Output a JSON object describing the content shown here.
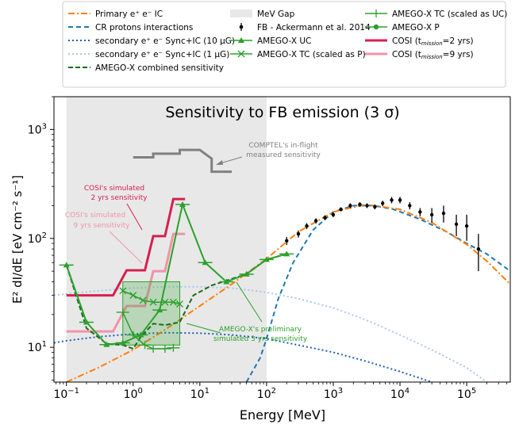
{
  "chart_data": {
    "type": "line",
    "title": "Sensitivity to FB emission (3 σ)",
    "xlabel": "Energy [MeV]",
    "ylabel": "E² dI/dE [eV cm⁻² s⁻¹]",
    "xscale": "log",
    "yscale": "log",
    "xlim": [
      0.065,
      450000
    ],
    "ylim": [
      4.8,
      2000
    ],
    "x_ticks": [
      {
        "value": 0.1,
        "base": "10",
        "exp": "−1"
      },
      {
        "value": 1,
        "base": "10",
        "exp": "0"
      },
      {
        "value": 10,
        "base": "10",
        "exp": "1"
      },
      {
        "value": 100,
        "base": "10",
        "exp": "2"
      },
      {
        "value": 1000,
        "base": "10",
        "exp": "3"
      },
      {
        "value": 10000,
        "base": "10",
        "exp": "4"
      },
      {
        "value": 100000,
        "base": "10",
        "exp": "5"
      }
    ],
    "y_ticks": [
      {
        "value": 10,
        "base": "10",
        "exp": "1"
      },
      {
        "value": 100,
        "base": "10",
        "exp": "2"
      },
      {
        "value": 1000,
        "base": "10",
        "exp": "3"
      }
    ],
    "legend_placement": "top, three columns",
    "legend": [
      {
        "key": "primary",
        "label": "Primary e⁺ e⁻ IC"
      },
      {
        "key": "crp",
        "label": "CR protons interactions"
      },
      {
        "key": "sec10",
        "label": "secondary e⁺ e⁻ Sync+IC (10 μG)"
      },
      {
        "key": "sec1",
        "label": "secondary e⁺ e⁻ Sync+IC (1 μG)"
      },
      {
        "key": "combined",
        "label": "AMEGO-X combined sensitivity"
      },
      {
        "key": "gap",
        "label": "MeV Gap"
      },
      {
        "key": "fb",
        "label": "FB - Ackermann et al. 2014"
      },
      {
        "key": "uc",
        "label": "AMEGO-X UC"
      },
      {
        "key": "tcp",
        "label": "AMEGO-X TC (scaled as P)"
      },
      {
        "key": "tcuc",
        "label": "AMEGO-X TC (scaled as UC)"
      },
      {
        "key": "p",
        "label": "AMEGO-X P"
      },
      {
        "key": "cosi2",
        "label": "COSI (t",
        "sub": "mission",
        "suffix": "=2 yrs)"
      },
      {
        "key": "cosi9",
        "label": "COSI (t",
        "sub": "mission",
        "suffix": "=9 yrs)"
      }
    ],
    "mev_gap": {
      "x": [
        0.1,
        100
      ]
    },
    "colors": {
      "primary": "#ff7f0e",
      "crp": "#1f77b4",
      "sec10": "#1f5fb4",
      "sec1": "#aac8e4",
      "combined": "#1a6e1a",
      "amego": "#2ca02c",
      "cosi2": "#d62050",
      "cosi9": "#ef94a8",
      "comptel": "#808080",
      "fb": "#000000",
      "gap": "#e8e8e8"
    },
    "series": [
      {
        "key": "primary",
        "name": "Primary e⁺ e⁻ IC",
        "x": [
          0.1,
          0.3,
          1,
          3,
          10,
          30,
          100,
          300,
          1000,
          3000,
          10000,
          30000,
          100000,
          200000,
          450000
        ],
        "y": [
          4.8,
          6.5,
          9.5,
          14.5,
          24,
          38,
          65,
          115,
          175,
          205,
          185,
          140,
          88,
          62,
          38
        ]
      },
      {
        "key": "crp",
        "name": "CR protons interactions",
        "x": [
          50,
          80,
          100,
          150,
          250,
          500,
          1000,
          2000,
          4000,
          8000,
          20000,
          50000,
          100000,
          200000,
          450000
        ],
        "y": [
          4.8,
          8,
          12,
          28,
          60,
          120,
          175,
          200,
          200,
          185,
          150,
          115,
          90,
          72,
          50
        ]
      },
      {
        "key": "sec10",
        "name": "secondary e⁺ e⁻ Sync+IC (10 μG)",
        "x": [
          0.065,
          0.1,
          0.3,
          1,
          3,
          10,
          30,
          100,
          300,
          1000,
          3000,
          10000,
          30000
        ],
        "y": [
          11,
          11.5,
          12.5,
          13.3,
          13.6,
          13.5,
          13,
          12,
          10.5,
          9,
          7.5,
          6,
          4.8
        ]
      },
      {
        "key": "sec1",
        "name": "secondary e⁺ e⁻ Sync+IC (1 μG)",
        "x": [
          0.065,
          0.1,
          0.3,
          1,
          3,
          10,
          30,
          100,
          300,
          1000,
          3000,
          10000,
          30000,
          100000,
          200000
        ],
        "y": [
          30,
          31,
          33,
          35,
          36,
          36,
          35,
          32,
          28,
          23,
          18,
          13,
          9.5,
          6.5,
          4.8
        ]
      },
      {
        "key": "combined",
        "name": "AMEGO-X combined sensitivity",
        "x": [
          0.1,
          0.2,
          0.4,
          0.7,
          1.0,
          1.3,
          2.0,
          3.0,
          5.0,
          8.0,
          15,
          25,
          50,
          100,
          200
        ],
        "y": [
          57,
          15,
          10.8,
          10.5,
          9.7,
          12.5,
          16.5,
          16,
          17,
          30,
          37,
          41,
          47,
          64,
          72
        ]
      },
      {
        "key": "uc",
        "name": "AMEGO-X UC",
        "x": [
          0.1,
          0.2,
          0.4,
          0.7,
          1.3,
          2.5,
          5.5,
          12,
          25,
          50,
          100,
          200
        ],
        "y": [
          57,
          17,
          10.6,
          11,
          13,
          22,
          205,
          60,
          40,
          47,
          64,
          72
        ]
      },
      {
        "key": "tcp",
        "name": "AMEGO-X TC (scaled as P)",
        "x": [
          0.7,
          1.0,
          1.4,
          2.0,
          3.0,
          4.0,
          5.0
        ],
        "y": [
          33,
          30,
          27,
          26,
          26,
          26,
          25
        ]
      },
      {
        "key": "tcuc",
        "name": "AMEGO-X TC (scaled as UC)",
        "x": [
          0.7,
          1.0,
          1.5,
          2.0,
          3.0,
          4.0
        ],
        "y": [
          21,
          13,
          10.5,
          9.7,
          9.7,
          9.9
        ]
      },
      {
        "key": "cosi2",
        "name": "COSI (t mission=2 yrs)",
        "x": [
          0.1,
          0.5,
          0.8,
          1.5,
          2.0,
          3.0,
          4.0,
          6.0
        ],
        "y": [
          30,
          30,
          51,
          51,
          105,
          105,
          230,
          230
        ]
      },
      {
        "key": "cosi9",
        "name": "COSI (t mission=9 yrs)",
        "x": [
          0.1,
          0.5,
          0.8,
          1.5,
          2.0,
          3.0,
          4.0,
          6.0
        ],
        "y": [
          14,
          14,
          24,
          24,
          50,
          50,
          110,
          110
        ]
      },
      {
        "key": "comptel",
        "name": "COMPTEL in-flight measured sensitivity",
        "x": [
          1,
          2,
          2,
          5,
          5,
          10,
          10,
          15,
          15,
          30
        ],
        "y": [
          555,
          555,
          600,
          600,
          650,
          650,
          650,
          540,
          410,
          410
        ]
      }
    ],
    "amego_p_region": {
      "x": [
        0.7,
        5.0
      ],
      "y": [
        10.5,
        40
      ]
    },
    "fb_points": {
      "x": [
        200,
        300,
        400,
        550,
        750,
        1000,
        1300,
        1800,
        2500,
        3200,
        4200,
        5500,
        7500,
        10000,
        14000,
        20000,
        30000,
        45000,
        70000,
        100000,
        150000
      ],
      "y": [
        95,
        110,
        130,
        145,
        155,
        165,
        185,
        200,
        205,
        200,
        195,
        210,
        225,
        225,
        200,
        175,
        165,
        170,
        135,
        130,
        80
      ],
      "yerr": [
        8,
        8,
        8,
        8,
        8,
        8,
        8,
        10,
        10,
        10,
        10,
        12,
        15,
        15,
        15,
        15,
        25,
        30,
        30,
        35,
        30
      ]
    },
    "annotations": {
      "comptel": [
        "COMPTEL's in-flight",
        "measured sensitivity"
      ],
      "cosi2": [
        "COSI's simulated",
        "2 yrs sensitivity"
      ],
      "cosi9": [
        "COSI's simulated",
        "9 yrs sensitivity"
      ],
      "amego": [
        "AMEGO-X's preliminary",
        "simulated 3 yrs sensitivity"
      ]
    }
  }
}
